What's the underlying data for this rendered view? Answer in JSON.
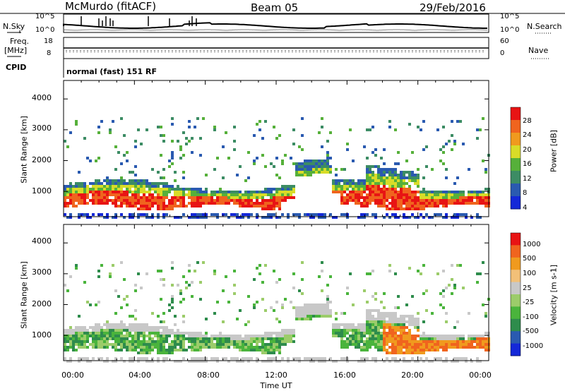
{
  "header": {
    "station": "McMurdo (fitACF)",
    "beam": "Beam 05",
    "date": "29/Feb/2016"
  },
  "noise_panel": {
    "left_label": "N.Sky",
    "right_label": "N.Search",
    "left_ticks": [
      "10^5",
      "10^0"
    ],
    "right_ticks": [
      "10^5",
      "10^0"
    ]
  },
  "freq_panel": {
    "left_label": "Freq.",
    "unit": "[MHz]",
    "left_ticks": [
      "18",
      "8"
    ],
    "right_label": "Nave",
    "right_ticks": [
      "60",
      "0"
    ]
  },
  "cpid": {
    "label": "CPID",
    "value": "normal (fast) 151 RF"
  },
  "colors": {
    "power": [
      "#1428d8",
      "#2a5ab0",
      "#3c8c64",
      "#56b03a",
      "#d8dc28",
      "#f09a1e",
      "#f0641e",
      "#e81414"
    ],
    "velocity": [
      "#e81414",
      "#f0641e",
      "#f09a1e",
      "#f2c078",
      "#c8c8c8",
      "#9ccc6a",
      "#4ab43c",
      "#2e8c4c",
      "#2a5ab0",
      "#1428d8"
    ]
  },
  "chart_data": [
    {
      "type": "heatmap",
      "ylabel": "Slant Range [km]",
      "ylim": [
        180,
        4600
      ],
      "y_ticks": [
        "1000",
        "2000",
        "3000",
        "4000"
      ],
      "xlim": [
        0,
        24
      ],
      "colorbar_label": "Power [dB]",
      "colorbar_ticks": [
        "4",
        "8",
        "12",
        "16",
        "20",
        "24",
        "28"
      ]
    },
    {
      "type": "heatmap",
      "ylabel": "Slant Range [km]",
      "ylim": [
        180,
        4600
      ],
      "y_ticks": [
        "1000",
        "2000",
        "3000",
        "4000"
      ],
      "xlim": [
        0,
        24
      ],
      "colorbar_label": "Velocity [m s-1]",
      "colorbar_ticks": [
        "1000",
        "500",
        "100",
        "25",
        "-25",
        "-100",
        "-500",
        "-1000"
      ],
      "xlabel": "Time UT",
      "x_ticks": [
        "00:00",
        "04:00",
        "08:00",
        "12:00",
        "16:00",
        "20:00",
        "00:00"
      ]
    }
  ]
}
